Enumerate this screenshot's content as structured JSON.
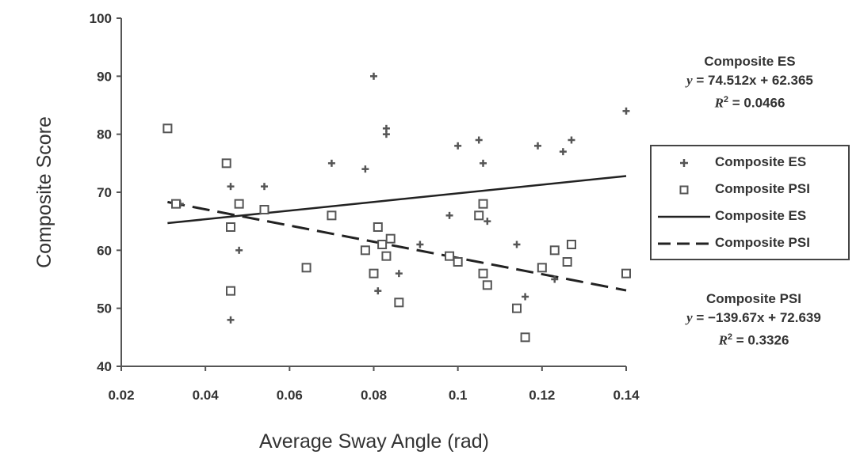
{
  "chart_data": {
    "type": "scatter",
    "xlabel": "Average Sway Angle (rad)",
    "ylabel": "Composite Score",
    "xlim": [
      0.02,
      0.14
    ],
    "ylim": [
      40,
      100
    ],
    "xticks": [
      "0.02",
      "0.04",
      "0.06",
      "0.08",
      "0.1",
      "0.12",
      "0.14"
    ],
    "yticks": [
      "40",
      "50",
      "60",
      "70",
      "80",
      "90",
      "100"
    ],
    "grid": false,
    "legend_position": "right",
    "series": [
      {
        "name": "Composite ES",
        "kind": "points",
        "marker": "plus",
        "points": [
          [
            0.034,
            68
          ],
          [
            0.046,
            71
          ],
          [
            0.046,
            48
          ],
          [
            0.048,
            60
          ],
          [
            0.054,
            71
          ],
          [
            0.07,
            75
          ],
          [
            0.078,
            74
          ],
          [
            0.08,
            90
          ],
          [
            0.081,
            53
          ],
          [
            0.083,
            81
          ],
          [
            0.083,
            80
          ],
          [
            0.086,
            56
          ],
          [
            0.091,
            61
          ],
          [
            0.098,
            66
          ],
          [
            0.1,
            78
          ],
          [
            0.105,
            79
          ],
          [
            0.106,
            75
          ],
          [
            0.107,
            65
          ],
          [
            0.114,
            61
          ],
          [
            0.116,
            52
          ],
          [
            0.119,
            78
          ],
          [
            0.123,
            55
          ],
          [
            0.125,
            77
          ],
          [
            0.127,
            79
          ],
          [
            0.14,
            84
          ]
        ]
      },
      {
        "name": "Composite PSI",
        "kind": "points",
        "marker": "square",
        "points": [
          [
            0.031,
            81
          ],
          [
            0.033,
            68
          ],
          [
            0.045,
            75
          ],
          [
            0.046,
            64
          ],
          [
            0.046,
            53
          ],
          [
            0.048,
            68
          ],
          [
            0.054,
            67
          ],
          [
            0.064,
            57
          ],
          [
            0.07,
            66
          ],
          [
            0.078,
            60
          ],
          [
            0.08,
            56
          ],
          [
            0.081,
            64
          ],
          [
            0.082,
            61
          ],
          [
            0.083,
            59
          ],
          [
            0.084,
            62
          ],
          [
            0.086,
            51
          ],
          [
            0.098,
            59
          ],
          [
            0.1,
            58
          ],
          [
            0.105,
            66
          ],
          [
            0.106,
            68
          ],
          [
            0.106,
            56
          ],
          [
            0.107,
            54
          ],
          [
            0.114,
            50
          ],
          [
            0.116,
            45
          ],
          [
            0.12,
            57
          ],
          [
            0.123,
            60
          ],
          [
            0.126,
            58
          ],
          [
            0.127,
            61
          ],
          [
            0.14,
            56
          ]
        ]
      },
      {
        "name": "Composite ES",
        "kind": "trendline",
        "style": "solid",
        "slope": 74.512,
        "intercept": 62.365,
        "x_range": [
          0.031,
          0.14
        ]
      },
      {
        "name": "Composite PSI",
        "kind": "trendline",
        "style": "dashed",
        "slope": -139.67,
        "intercept": 72.639,
        "x_range": [
          0.031,
          0.14
        ]
      }
    ],
    "annotations": {
      "es": {
        "title": "Composite ES",
        "equation_prefix": "y",
        "equation_body": " = 74.512x + 62.365",
        "r2_prefix": "R",
        "r2_sup": "2",
        "r2_body": " = 0.0466"
      },
      "psi": {
        "title": "Composite PSI",
        "equation_prefix": "y",
        "equation_body": " = −139.67x + 72.639",
        "r2_prefix": "R",
        "r2_sup": "2",
        "r2_body": " = 0.3326"
      }
    }
  },
  "colors": {
    "points": "#555555",
    "axis": "#555555",
    "line": "#222222"
  }
}
